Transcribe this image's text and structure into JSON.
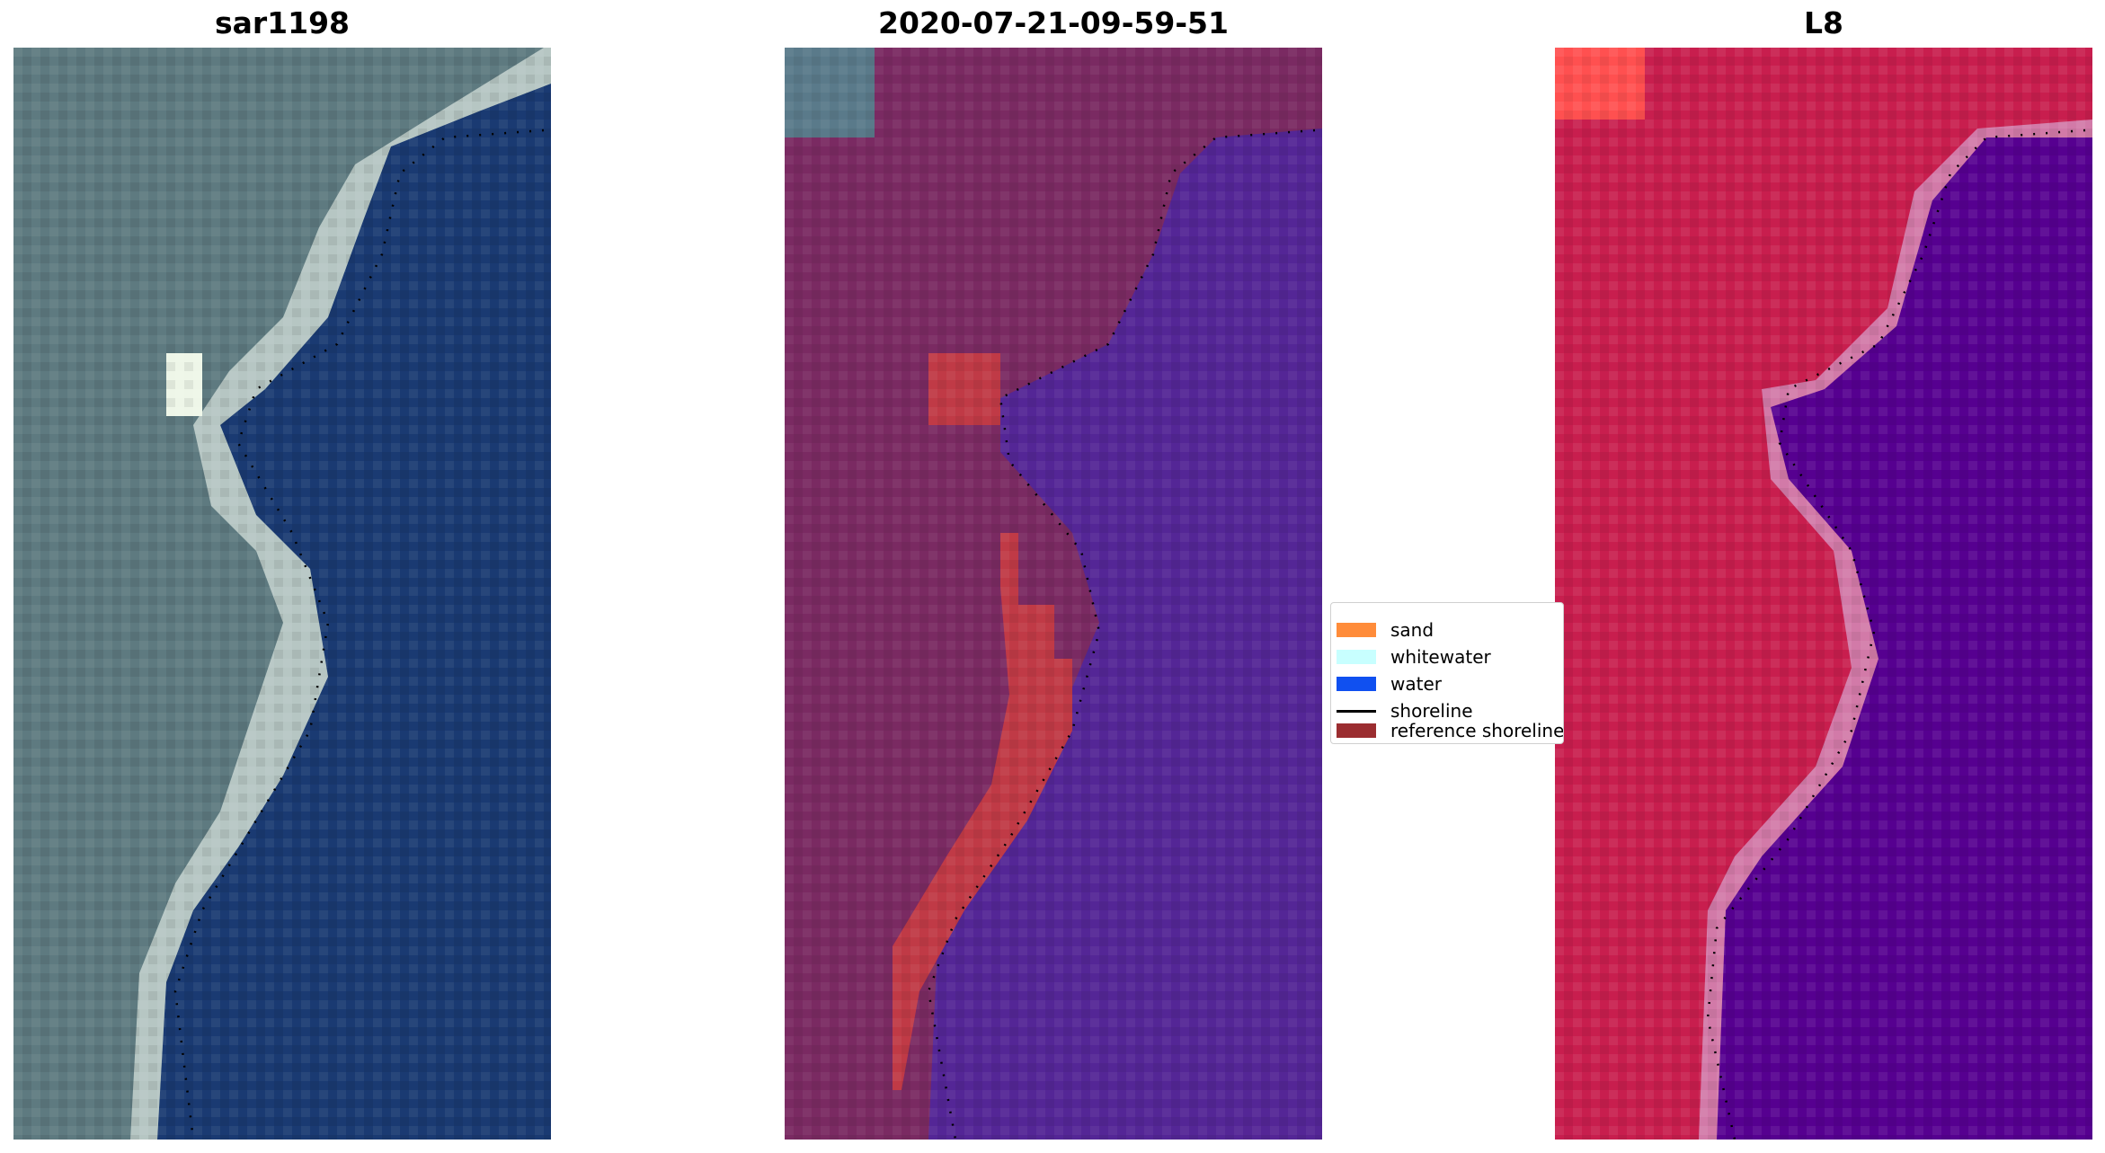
{
  "panels": [
    {
      "title": "sar1198",
      "image": "true-color satellite image of coastline"
    },
    {
      "title": "2020-07-21-09-59-51",
      "image": "classified image overlay"
    },
    {
      "title": "L8",
      "image": "false-color Landsat 8 image"
    }
  ],
  "legend": {
    "items": [
      {
        "label": "sand",
        "color": "#ff8c3a",
        "kind": "patch"
      },
      {
        "label": "whitewater",
        "color": "#c8ffff",
        "kind": "patch"
      },
      {
        "label": "water",
        "color": "#1050f0",
        "kind": "patch"
      },
      {
        "label": "shoreline",
        "color": "#000000",
        "kind": "line"
      },
      {
        "label": "reference shoreline",
        "color": "#9b2d30",
        "kind": "patch"
      }
    ]
  },
  "colors": {
    "rgb_land": "#5e7a80",
    "rgb_sand": "#c6d3cf",
    "rgb_water": "#1a3a72",
    "class_land": "#7a2a62",
    "class_sand": "#c03a46",
    "class_water": "#542696",
    "l8_land": "#c81e4e",
    "l8_edge": "#d27aa8",
    "l8_water": "#560090"
  }
}
